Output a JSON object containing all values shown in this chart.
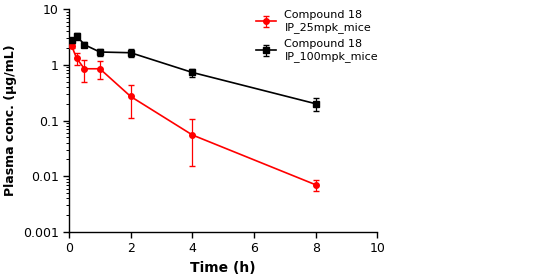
{
  "red_x": [
    0.083,
    0.25,
    0.5,
    1.0,
    2.0,
    4.0,
    8.0
  ],
  "red_y": [
    2.2,
    1.3,
    0.85,
    0.85,
    0.27,
    0.055,
    0.007
  ],
  "red_yerr_low": [
    0.2,
    0.3,
    0.35,
    0.3,
    0.16,
    0.04,
    0.0015
  ],
  "red_yerr_high": [
    0.2,
    0.3,
    0.35,
    0.3,
    0.16,
    0.05,
    0.0015
  ],
  "black_x": [
    0.083,
    0.25,
    0.5,
    1.0,
    2.0,
    4.0,
    8.0
  ],
  "black_y": [
    2.8,
    3.3,
    2.3,
    1.7,
    1.65,
    0.73,
    0.2
  ],
  "black_yerr_low": [
    0.25,
    0.45,
    0.25,
    0.25,
    0.25,
    0.12,
    0.05
  ],
  "black_yerr_high": [
    0.25,
    0.45,
    0.25,
    0.25,
    0.25,
    0.12,
    0.05
  ],
  "red_label_line1": "Compound 18",
  "red_label_line2": "IP_25mpk_mice",
  "black_label_line1": "Compound 18",
  "black_label_line2": "IP_100mpk_mice",
  "xlabel": "Time (h)",
  "ylabel": "Plasma conc. (μg/mL)",
  "xlim": [
    0,
    10
  ],
  "ylim_log": [
    0.001,
    10
  ],
  "yticks": [
    0.001,
    0.01,
    0.1,
    1,
    10
  ],
  "xticks": [
    0,
    2,
    4,
    6,
    8,
    10
  ],
  "red_color": "#FF0000",
  "black_color": "#000000",
  "background_color": "#FFFFFF",
  "figsize": [
    5.41,
    2.79
  ],
  "dpi": 100
}
